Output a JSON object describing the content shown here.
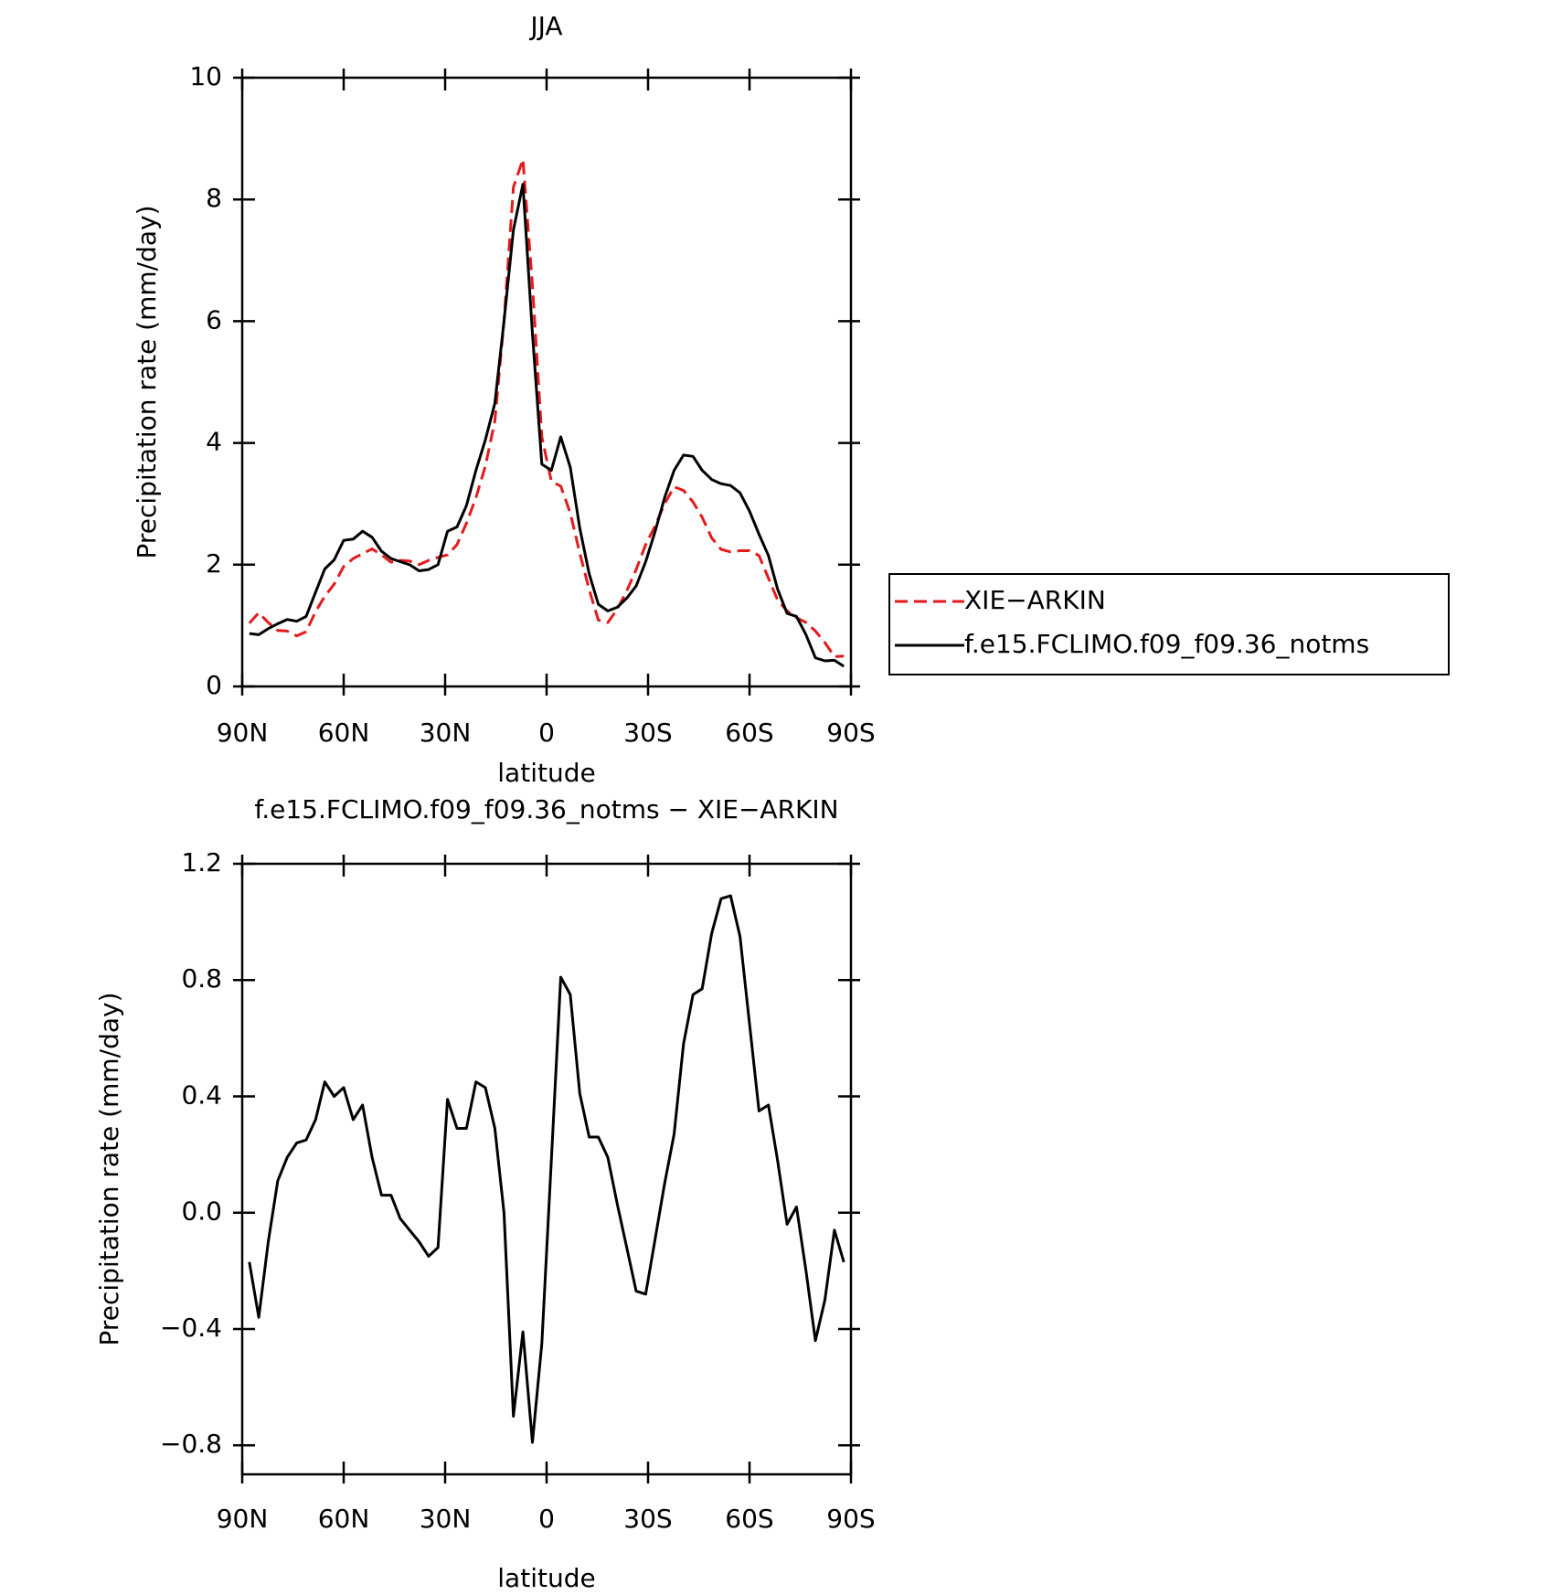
{
  "chart_data": [
    {
      "type": "line",
      "title": "JJA",
      "xlabel": "latitude",
      "ylabel": "Precipitation rate (mm/day)",
      "x": [
        87.9,
        85.1,
        82.3,
        79.5,
        76.7,
        73.9,
        71.1,
        68.3,
        65.6,
        62.8,
        60.0,
        57.2,
        54.4,
        51.6,
        48.8,
        46.0,
        43.3,
        40.5,
        37.7,
        34.9,
        32.1,
        29.3,
        26.5,
        23.7,
        20.9,
        18.1,
        15.3,
        12.6,
        9.8,
        7.0,
        4.2,
        1.4,
        -1.4,
        -4.2,
        -7.0,
        -9.8,
        -12.6,
        -15.3,
        -18.1,
        -20.9,
        -23.7,
        -26.5,
        -29.3,
        -32.1,
        -34.9,
        -37.7,
        -40.5,
        -43.3,
        -46.0,
        -48.8,
        -51.6,
        -54.4,
        -57.2,
        -60.0,
        -62.8,
        -65.6,
        -68.3,
        -71.1,
        -73.9,
        -76.7,
        -79.5,
        -82.3,
        -85.1,
        -87.9
      ],
      "series": [
        {
          "name": "XIE−ARKIN",
          "color": "#e41a1c",
          "dash": true,
          "values": [
            1.04,
            1.21,
            1.05,
            0.92,
            0.91,
            0.83,
            0.9,
            1.23,
            1.48,
            1.68,
            1.97,
            2.1,
            2.18,
            2.26,
            2.16,
            2.04,
            2.07,
            2.06,
            2.0,
            2.07,
            2.12,
            2.16,
            2.33,
            2.68,
            3.1,
            3.62,
            4.36,
            6.0,
            8.2,
            8.66,
            6.59,
            4.1,
            3.37,
            3.29,
            2.85,
            2.19,
            1.59,
            1.09,
            1.05,
            1.27,
            1.57,
            1.92,
            2.33,
            2.64,
            3.0,
            3.28,
            3.22,
            3.03,
            2.78,
            2.44,
            2.25,
            2.21,
            2.23,
            2.23,
            2.15,
            1.78,
            1.42,
            1.24,
            1.13,
            1.05,
            0.91,
            0.72,
            0.49,
            0.5
          ]
        },
        {
          "name": "f.e15.FCLIMO.f09_f09.36_notms",
          "color": "#000000",
          "dash": false,
          "values": [
            0.87,
            0.85,
            0.95,
            1.03,
            1.1,
            1.07,
            1.15,
            1.55,
            1.93,
            2.08,
            2.4,
            2.42,
            2.55,
            2.45,
            2.22,
            2.1,
            2.05,
            2.0,
            1.9,
            1.92,
            2.0,
            2.55,
            2.62,
            2.97,
            3.55,
            4.05,
            4.65,
            6.0,
            7.5,
            8.25,
            5.8,
            3.65,
            3.55,
            4.1,
            3.6,
            2.6,
            1.85,
            1.35,
            1.24,
            1.3,
            1.45,
            1.65,
            2.05,
            2.55,
            3.1,
            3.55,
            3.8,
            3.78,
            3.55,
            3.4,
            3.33,
            3.3,
            3.18,
            2.88,
            2.5,
            2.15,
            1.6,
            1.2,
            1.15,
            0.85,
            0.47,
            0.42,
            0.43,
            0.33
          ]
        }
      ],
      "xlim": [
        90,
        -90
      ],
      "xticks": [
        {
          "value": 90,
          "label": "90N"
        },
        {
          "value": 60,
          "label": "60N"
        },
        {
          "value": 30,
          "label": "30N"
        },
        0,
        {
          "value": -30,
          "label": "30S"
        },
        {
          "value": -60,
          "label": "60S"
        },
        {
          "value": -90,
          "label": "90S"
        }
      ],
      "ylim": [
        0,
        10
      ],
      "yticks": [
        0,
        2,
        4,
        6,
        8,
        10
      ],
      "legend": "right"
    },
    {
      "type": "line",
      "title": "f.e15.FCLIMO.f09_f09.36_notms − XIE−ARKIN",
      "xlabel": "latitude",
      "ylabel": "Precipitation rate (mm/day)",
      "x": [
        87.9,
        85.1,
        82.3,
        79.5,
        76.7,
        73.9,
        71.1,
        68.3,
        65.6,
        62.8,
        60.0,
        57.2,
        54.4,
        51.6,
        48.8,
        46.0,
        43.3,
        40.5,
        37.7,
        34.9,
        32.1,
        29.3,
        26.5,
        23.7,
        20.9,
        18.1,
        15.3,
        12.6,
        9.8,
        7.0,
        4.2,
        1.4,
        -1.4,
        -4.2,
        -7.0,
        -9.8,
        -12.6,
        -15.3,
        -18.1,
        -20.9,
        -23.7,
        -26.5,
        -29.3,
        -32.1,
        -34.9,
        -37.7,
        -40.5,
        -43.3,
        -46.0,
        -48.8,
        -51.6,
        -54.4,
        -57.2,
        -60.0,
        -62.8,
        -65.6,
        -68.3,
        -71.1,
        -73.9,
        -76.7,
        -79.5,
        -82.3,
        -85.1,
        -87.9
      ],
      "color": "#000000",
      "values": [
        -0.17,
        -0.36,
        -0.1,
        0.11,
        0.19,
        0.24,
        0.25,
        0.32,
        0.45,
        0.4,
        0.43,
        0.32,
        0.37,
        0.19,
        0.06,
        0.06,
        -0.02,
        -0.06,
        -0.1,
        -0.15,
        -0.12,
        0.39,
        0.29,
        0.29,
        0.45,
        0.43,
        0.29,
        0.0,
        -0.7,
        -0.41,
        -0.79,
        -0.45,
        0.18,
        0.81,
        0.75,
        0.41,
        0.26,
        0.26,
        0.19,
        0.03,
        -0.12,
        -0.27,
        -0.28,
        -0.09,
        0.1,
        0.27,
        0.58,
        0.75,
        0.77,
        0.96,
        1.08,
        1.09,
        0.95,
        0.65,
        0.35,
        0.37,
        0.18,
        -0.04,
        0.02,
        -0.2,
        -0.44,
        -0.3,
        -0.06,
        -0.17
      ],
      "xlim": [
        90,
        -90
      ],
      "xticks": [
        {
          "value": 90,
          "label": "90N"
        },
        {
          "value": 60,
          "label": "60N"
        },
        {
          "value": 30,
          "label": "30N"
        },
        0,
        {
          "value": -30,
          "label": "30S"
        },
        {
          "value": -60,
          "label": "60S"
        },
        {
          "value": -90,
          "label": "90S"
        }
      ],
      "ylim": [
        -0.9,
        1.2
      ],
      "yticks": [
        {
          "value": -0.8,
          "label": "−0.8"
        },
        {
          "value": -0.4,
          "label": "−0.4"
        },
        {
          "value": 0,
          "label": "0.0"
        },
        0.4,
        0.8,
        1.2
      ]
    }
  ]
}
